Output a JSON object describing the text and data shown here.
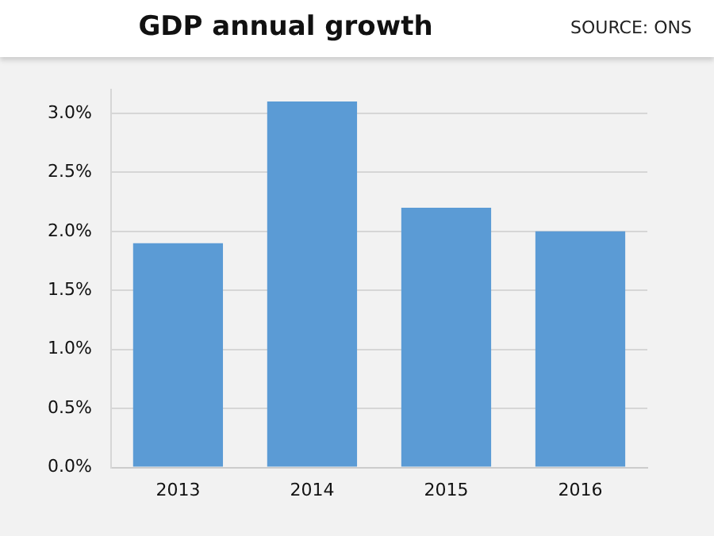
{
  "chart_data": {
    "type": "bar",
    "title": "GDP annual growth",
    "annotations": [
      "SOURCE: ONS"
    ],
    "categories": [
      "2013",
      "2014",
      "2015",
      "2016"
    ],
    "values": [
      1.9,
      3.1,
      2.2,
      2.0
    ],
    "color": "#5b9bd5",
    "ylim": [
      0,
      3.2
    ],
    "yticks": [
      {
        "value": 0,
        "label": "0.0%"
      },
      {
        "value": 0.5,
        "label": "0.5%"
      },
      {
        "value": 1,
        "label": "1.0%"
      },
      {
        "value": 1.5,
        "label": "1.5%"
      },
      {
        "value": 2,
        "label": "2.0%"
      },
      {
        "value": 2.5,
        "label": "2.5%"
      },
      {
        "value": 3,
        "label": "3.0%"
      }
    ],
    "grid": "y",
    "legend": false
  }
}
